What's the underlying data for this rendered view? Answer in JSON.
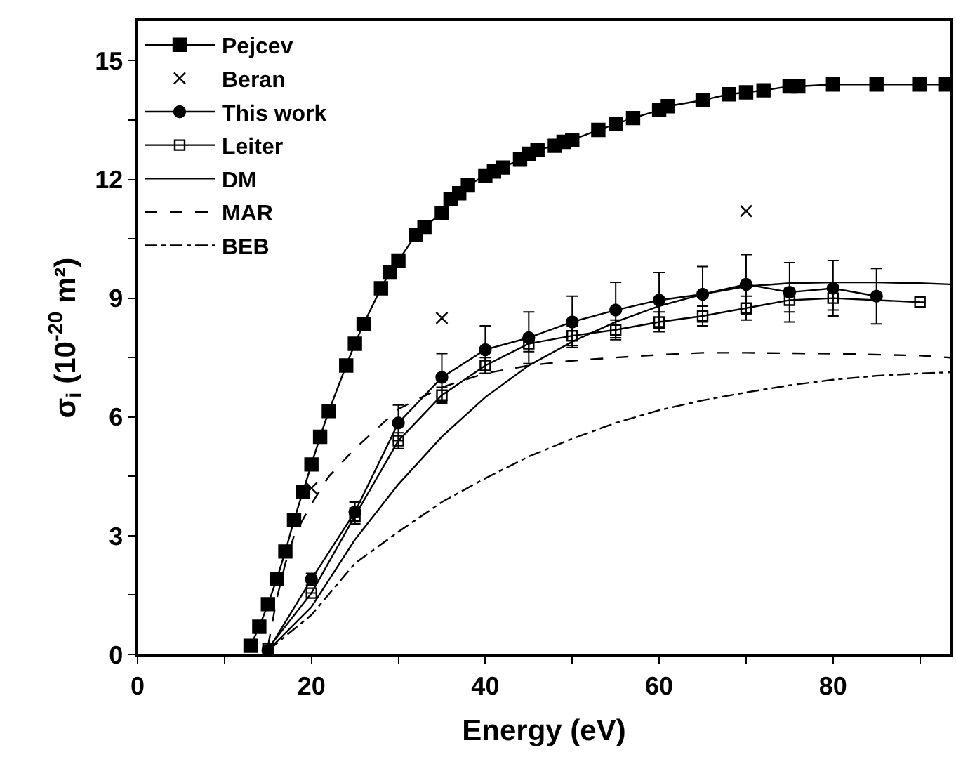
{
  "chart_data": {
    "type": "line",
    "xlabel": "Energy (eV)",
    "ylabel": "σ$_{i}$ (10$^{-20}$ m²)",
    "xlim": [
      0,
      93.5
    ],
    "ylim": [
      0,
      16
    ],
    "xticks": [
      0,
      {
        "value": 10,
        "label": null
      },
      20,
      {
        "value": 30,
        "label": null
      },
      40,
      {
        "value": 50,
        "label": null
      },
      60,
      {
        "value": 70,
        "label": null
      },
      80,
      {
        "value": 90,
        "label": null
      }
    ],
    "yticks": [
      0,
      {
        "value": 1.5,
        "label": null
      },
      3,
      {
        "value": 4.5,
        "label": null
      },
      6,
      {
        "value": 7.5,
        "label": null
      },
      9,
      {
        "value": 10.5,
        "label": null
      },
      12,
      {
        "value": 13.5,
        "label": null
      },
      15
    ],
    "legend": "top left",
    "series": [
      {
        "name": "Pejcev",
        "color": "#000000",
        "marker": "square",
        "line_style": "solid",
        "x": [
          13,
          14,
          15,
          16,
          17,
          18,
          19,
          20,
          21,
          22,
          24,
          25,
          26,
          28,
          29,
          30,
          32,
          33,
          35,
          36,
          37,
          38,
          40,
          41,
          42,
          44,
          45,
          46,
          48,
          49,
          50,
          53,
          55,
          57,
          60,
          61,
          65,
          68,
          70,
          72,
          75,
          76,
          80,
          85,
          90,
          93
        ],
        "values": [
          0.22,
          0.7,
          1.27,
          1.9,
          2.6,
          3.4,
          4.1,
          4.8,
          5.5,
          6.15,
          7.3,
          7.85,
          8.35,
          9.25,
          9.65,
          9.95,
          10.6,
          10.8,
          11.15,
          11.5,
          11.65,
          11.85,
          12.1,
          12.2,
          12.3,
          12.5,
          12.65,
          12.75,
          12.85,
          12.95,
          13.0,
          13.25,
          13.4,
          13.55,
          13.75,
          13.85,
          14.0,
          14.15,
          14.2,
          14.25,
          14.35,
          14.35,
          14.4,
          14.4,
          14.4,
          14.4
        ]
      },
      {
        "name": "Beran",
        "type": "scatter",
        "color": "#000000",
        "marker": "cross",
        "x": [
          20,
          35,
          70
        ],
        "values": [
          4.2,
          8.5,
          11.2
        ]
      },
      {
        "name": "This work",
        "color": "#000000",
        "marker": "circle",
        "line_style": "solid",
        "x": [
          15,
          20,
          25,
          30,
          35,
          40,
          45,
          50,
          55,
          60,
          65,
          70,
          75,
          80,
          85
        ],
        "values": [
          0.1,
          1.9,
          3.6,
          5.85,
          7.0,
          7.7,
          8.0,
          8.4,
          8.7,
          8.95,
          9.1,
          9.35,
          9.15,
          9.25,
          9.05
        ],
        "errors": [
          null,
          0.15,
          0.25,
          0.45,
          0.6,
          0.6,
          0.65,
          0.65,
          0.7,
          0.7,
          0.7,
          0.75,
          0.75,
          0.7,
          0.7
        ]
      },
      {
        "name": "Leiter",
        "color": "#000000",
        "marker": "square-open",
        "line_style": "solid",
        "x": [
          15,
          20,
          25,
          30,
          35,
          40,
          45,
          50,
          55,
          60,
          65,
          70,
          75,
          80,
          90
        ],
        "values": [
          0.15,
          1.55,
          3.5,
          5.4,
          6.55,
          7.3,
          7.85,
          8.05,
          8.2,
          8.4,
          8.55,
          8.75,
          8.95,
          9.0,
          8.9
        ],
        "errors": [
          null,
          null,
          0.2,
          0.2,
          0.2,
          0.2,
          0.2,
          0.25,
          0.25,
          0.25,
          0.25,
          0.3,
          0.3,
          0.3,
          null
        ]
      },
      {
        "name": "DM",
        "color": "#000000",
        "marker": "none",
        "line_style": "solid",
        "x": [
          15,
          20,
          25,
          30,
          35,
          40,
          45,
          50,
          55,
          60,
          65,
          70,
          75,
          80,
          85,
          90,
          93.5
        ],
        "values": [
          0.1,
          1.2,
          2.9,
          4.3,
          5.5,
          6.5,
          7.3,
          7.9,
          8.4,
          8.8,
          9.1,
          9.3,
          9.38,
          9.4,
          9.4,
          9.38,
          9.35
        ]
      },
      {
        "name": "MAR",
        "color": "#000000",
        "marker": "none",
        "line_style": "dashed",
        "x": [
          15,
          16,
          17,
          18,
          20,
          22,
          25,
          30,
          35,
          40,
          45,
          50,
          55,
          60,
          65,
          70,
          80,
          90,
          93.5
        ],
        "values": [
          0.2,
          1.4,
          2.3,
          3.0,
          3.8,
          4.5,
          5.2,
          6.2,
          6.75,
          7.1,
          7.3,
          7.42,
          7.5,
          7.57,
          7.62,
          7.62,
          7.6,
          7.55,
          7.5
        ]
      },
      {
        "name": "BEB",
        "color": "#000000",
        "marker": "none",
        "line_style": "dashdot",
        "x": [
          15,
          20,
          25,
          30,
          35,
          40,
          45,
          50,
          55,
          60,
          65,
          70,
          75,
          80,
          85,
          90,
          93.5
        ],
        "values": [
          0.1,
          1.0,
          2.3,
          3.1,
          3.85,
          4.45,
          5.0,
          5.45,
          5.85,
          6.17,
          6.42,
          6.62,
          6.8,
          6.94,
          7.04,
          7.1,
          7.13
        ]
      }
    ]
  }
}
